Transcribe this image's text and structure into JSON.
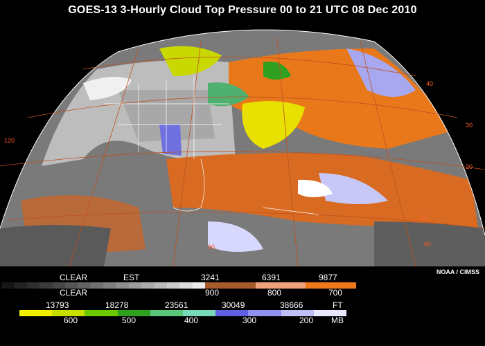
{
  "title": "GOES-13 3-Hourly Cloud Top Pressure  00 to 21 UTC  08 Dec 2010",
  "credit": "NOAA / CIMSS",
  "latlon_labels": [
    {
      "text": "40",
      "color": "#ff5a2a"
    },
    {
      "text": "30",
      "color": "#ff5a2a"
    },
    {
      "text": "20",
      "color": "#ff5a2a"
    },
    {
      "text": "120",
      "color": "#ff5a2a"
    },
    {
      "text": "90",
      "color": "#ff5a2a"
    },
    {
      "text": "60",
      "color": "#ff5a2a"
    },
    {
      "text": "10",
      "color": "#ff5a2a"
    }
  ],
  "legend": {
    "row1": {
      "labels": [
        "CLEAR",
        "EST",
        "3241",
        "6391",
        "9877"
      ],
      "gray_colors": [
        "#161616",
        "#222",
        "#2e2e2e",
        "#3a3a3a",
        "#474747",
        "#545454",
        "#626262",
        "#707070",
        "#7e7e7e",
        "#8d8d8d",
        "#9c9c9c",
        "#ababab",
        "#bbbbbb",
        "#cbcbcb",
        "#dbdbdb",
        "#ebebeb"
      ],
      "warm_colors": [
        "#a85a2a",
        "#f0a07a",
        "#f07818"
      ]
    },
    "row2": {
      "labels": [
        "CLEAR",
        "900",
        "800",
        "700"
      ]
    },
    "row3": {
      "labels": [
        "13793",
        "18278",
        "23561",
        "30049",
        "38666",
        "FT"
      ],
      "colors": [
        "#f0f000",
        "#c8e000",
        "#6cc800",
        "#30a020",
        "#58c878",
        "#78d8b8",
        "#6060e0",
        "#9090f0",
        "#c0c0f8",
        "#e8e8ff"
      ]
    },
    "row4": {
      "labels": [
        "600",
        "500",
        "400",
        "300",
        "200",
        "MB"
      ]
    }
  }
}
